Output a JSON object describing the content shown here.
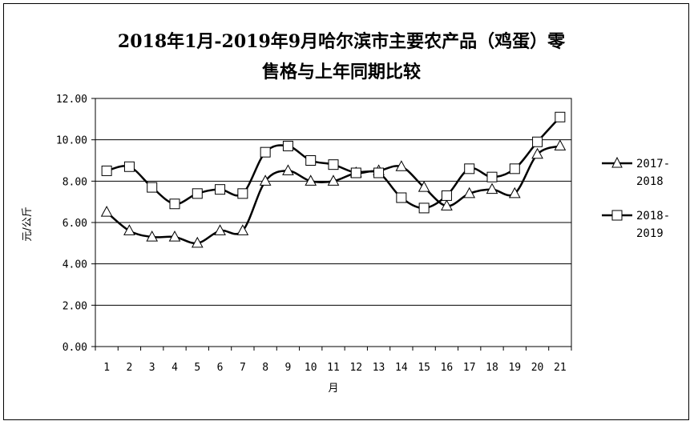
{
  "chart_data": {
    "type": "line",
    "title_lines": [
      "2018年1月-2019年9月哈尔滨市主要农产品（鸡蛋）零",
      "售格与上年同期比较"
    ],
    "xlabel": "月",
    "ylabel": "元/公斤",
    "categories": [
      "1",
      "2",
      "3",
      "4",
      "5",
      "6",
      "7",
      "8",
      "9",
      "10",
      "11",
      "12",
      "13",
      "14",
      "15",
      "16",
      "17",
      "18",
      "19",
      "20",
      "21"
    ],
    "ylim": [
      0,
      12
    ],
    "yticks": [
      "0.00",
      "2.00",
      "4.00",
      "6.00",
      "8.00",
      "10.00",
      "12.00"
    ],
    "grid": true,
    "legend_position": "right",
    "series": [
      {
        "name_lines": [
          "2017-",
          "2018"
        ],
        "marker": "triangle",
        "values": [
          6.5,
          5.6,
          5.3,
          5.3,
          5.0,
          5.6,
          5.6,
          8.0,
          8.5,
          8.0,
          8.0,
          8.4,
          8.5,
          8.7,
          7.7,
          6.8,
          7.4,
          7.6,
          7.4,
          9.3,
          9.7
        ]
      },
      {
        "name_lines": [
          "2018-",
          "2019"
        ],
        "marker": "square",
        "values": [
          8.5,
          8.7,
          7.7,
          6.9,
          7.4,
          7.6,
          7.4,
          9.4,
          9.7,
          9.0,
          8.8,
          8.4,
          8.4,
          7.2,
          6.7,
          7.3,
          8.6,
          8.2,
          8.6,
          9.9,
          11.1
        ]
      }
    ]
  }
}
